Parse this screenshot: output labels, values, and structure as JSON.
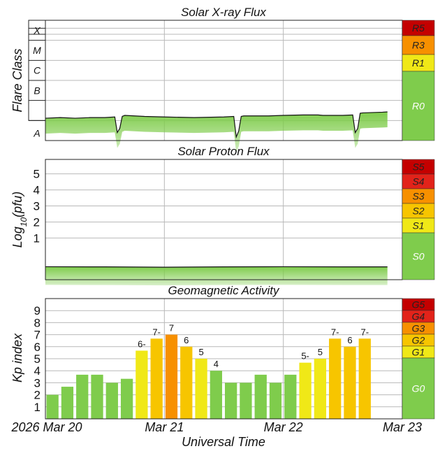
{
  "colors": {
    "green": "#7fcc4c",
    "yellow": "#f0e817",
    "gold": "#f7c500",
    "orange": "#f79000",
    "red_orange": "#ef4b00",
    "red": "#e2231a",
    "dark_red": "#c40000",
    "grid": "#b9b9b9"
  },
  "chart_data": [
    {
      "type": "area",
      "title": "Solar X-ray Flux",
      "ylabel": "Flare Class",
      "y_categories": [
        "A",
        "B",
        "C",
        "M",
        "X"
      ],
      "y_log_scale": true,
      "y_range_wm2": [
        1e-09,
        0.001
      ],
      "x_ticks": [
        "2026 Mar 20",
        "Mar 21",
        "Mar 22",
        "Mar 23"
      ],
      "x_range_days": [
        0,
        3
      ],
      "series": [
        {
          "x_hours": [
            0,
            3,
            6,
            9,
            12,
            14,
            14.5,
            15,
            15.5,
            16,
            20,
            24,
            30,
            36,
            38,
            38.5,
            39,
            39.5,
            40,
            45,
            48,
            52,
            55,
            56,
            60,
            62,
            62.5,
            63,
            63.5,
            64,
            66,
            68,
            69
          ],
          "flux_wm2": [
            1.3e-08,
            1.4e-08,
            1.3e-08,
            1.4e-08,
            1.4e-08,
            1.5e-08,
            2.5e-09,
            4e-09,
            1.6e-08,
            1.8e-08,
            1.6e-08,
            1.5e-08,
            1.4e-08,
            1.5e-08,
            1.6e-08,
            1.5e-09,
            3e-09,
            1.6e-08,
            1.7e-08,
            1.7e-08,
            1.8e-08,
            1.9e-08,
            1.9e-08,
            1.8e-08,
            1.8e-08,
            1.9e-08,
            2.5e-09,
            4e-09,
            2.3e-08,
            2.4e-08,
            2.5e-08,
            2.6e-08,
            2.7e-08
          ]
        }
      ],
      "scale_levels": [
        "R5",
        "R3",
        "R1",
        "R0"
      ],
      "current_level": "R0"
    },
    {
      "type": "area",
      "title": "Solar Proton Flux",
      "ylabel": "Log10(pfu)",
      "yticks": [
        "1",
        "2",
        "3",
        "4",
        "5"
      ],
      "ylim": [
        -1.6,
        5.9
      ],
      "x_ticks": [
        "2026 Mar 20",
        "Mar 21",
        "Mar 22",
        "Mar 23"
      ],
      "x_range_days": [
        0,
        3
      ],
      "series": [
        {
          "x_hours": [
            0,
            12,
            24,
            36,
            48,
            60,
            69
          ],
          "log_pfu": [
            -0.79,
            -0.8,
            -0.82,
            -0.8,
            -0.79,
            -0.8,
            -0.8
          ]
        }
      ],
      "scale_levels": [
        "S5",
        "S4",
        "S3",
        "S2",
        "S1",
        "S0"
      ],
      "current_level": "S0"
    },
    {
      "type": "bar",
      "title": "Geomagnetic Activity",
      "ylabel": "Kp index",
      "xlabel": "Universal Time",
      "yticks": [
        "1",
        "2",
        "3",
        "4",
        "5",
        "6",
        "7",
        "8",
        "9"
      ],
      "ylim": [
        0,
        10
      ],
      "x_ticks": [
        "2026 Mar 20",
        "Mar 21",
        "Mar 22",
        "Mar 23"
      ],
      "x_range_days": [
        0,
        3
      ],
      "bar_interval_hours": 3,
      "values": [
        2,
        2.67,
        3.67,
        3.67,
        3,
        3.33,
        5.67,
        6.67,
        7,
        6,
        5,
        4,
        3,
        3,
        3.67,
        3,
        3.67,
        4.67,
        5,
        6.67,
        6,
        6.67
      ],
      "bar_labels": [
        "",
        "",
        "",
        "",
        "",
        "",
        "6-",
        "7-",
        "7",
        "6",
        "5",
        "4",
        "",
        "",
        "",
        "",
        "",
        "5-",
        "5",
        "7-",
        "6",
        "7-"
      ],
      "scale_levels": [
        "G5",
        "G4",
        "G3",
        "G2",
        "G1",
        "G0"
      ],
      "current_level": "G0"
    }
  ]
}
